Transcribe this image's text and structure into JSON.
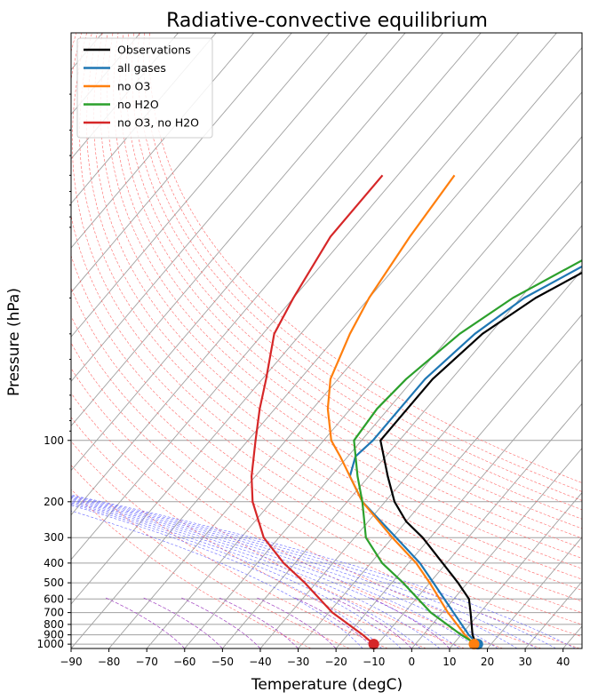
{
  "chart_data": {
    "type": "line",
    "title": "Radiative-convective equilibrium",
    "xlabel": "Temperature (degC)",
    "ylabel": "Pressure (hPa)",
    "xlim": [
      -90,
      45
    ],
    "ylim": [
      1050,
      1
    ],
    "yscale": "log",
    "skew": "skew-T log-p",
    "grid": true,
    "legend_position": "top-left",
    "x_ticks": [
      "−90",
      "−80",
      "−70",
      "−60",
      "−50",
      "−40",
      "−30",
      "−20",
      "−10",
      "0",
      "10",
      "20",
      "30",
      "40"
    ],
    "y_ticks": [
      "100",
      "200",
      "300",
      "400",
      "500",
      "600",
      "700",
      "800",
      "900",
      "1000"
    ],
    "series": [
      {
        "name": "Observations",
        "color": "#000000",
        "points": [
          [
            1000,
            16
          ],
          [
            900,
            13
          ],
          [
            700,
            7.5
          ],
          [
            600,
            4
          ],
          [
            500,
            -2.5
          ],
          [
            400,
            -11
          ],
          [
            300,
            -22
          ],
          [
            250,
            -30
          ],
          [
            200,
            -37.5
          ],
          [
            150,
            -45
          ],
          [
            100,
            -55
          ],
          [
            70,
            -55
          ],
          [
            50,
            -55
          ],
          [
            30,
            -52
          ],
          [
            20,
            -46
          ],
          [
            10,
            -30
          ],
          [
            5,
            -14
          ],
          [
            2,
            2
          ]
        ]
      },
      {
        "name": "all gases",
        "color": "#1f77b4",
        "points": [
          [
            1000,
            16.5
          ],
          [
            900,
            12
          ],
          [
            700,
            3
          ],
          [
            500,
            -9
          ],
          [
            400,
            -17
          ],
          [
            300,
            -29
          ],
          [
            200,
            -46
          ],
          [
            150,
            -55
          ],
          [
            120,
            -58
          ],
          [
            100,
            -57
          ],
          [
            70,
            -57
          ],
          [
            50,
            -57
          ],
          [
            30,
            -54
          ],
          [
            20,
            -49
          ],
          [
            10,
            -33
          ],
          [
            5,
            -17
          ],
          [
            1,
            18
          ]
        ]
      },
      {
        "name": "no O3",
        "color": "#ff7f0e",
        "points": [
          [
            1000,
            15.5
          ],
          [
            900,
            11
          ],
          [
            700,
            1.5
          ],
          [
            500,
            -10
          ],
          [
            400,
            -18
          ],
          [
            300,
            -30
          ],
          [
            200,
            -46
          ],
          [
            150,
            -55
          ],
          [
            120,
            -62
          ],
          [
            100,
            -68
          ],
          [
            70,
            -76
          ],
          [
            50,
            -82
          ],
          [
            30,
            -87
          ],
          [
            20,
            -90
          ],
          [
            10,
            -93
          ],
          [
            5,
            -95
          ]
        ]
      },
      {
        "name": "no H2O",
        "color": "#2ca02c",
        "points": [
          [
            1000,
            16
          ],
          [
            900,
            10
          ],
          [
            700,
            -3
          ],
          [
            500,
            -17
          ],
          [
            400,
            -27
          ],
          [
            300,
            -37
          ],
          [
            200,
            -46
          ],
          [
            150,
            -53
          ],
          [
            100,
            -62
          ],
          [
            70,
            -63
          ],
          [
            50,
            -62
          ],
          [
            30,
            -58
          ],
          [
            20,
            -52
          ],
          [
            10,
            -36
          ],
          [
            5,
            -22
          ],
          [
            1,
            13
          ]
        ]
      },
      {
        "name": "no O3, no H2O",
        "color": "#d62728",
        "points": [
          [
            1000,
            -11
          ],
          [
            900,
            -16
          ],
          [
            700,
            -29
          ],
          [
            500,
            -43
          ],
          [
            400,
            -53
          ],
          [
            300,
            -64
          ],
          [
            200,
            -75
          ],
          [
            150,
            -81
          ],
          [
            100,
            -88
          ],
          [
            70,
            -94
          ],
          [
            50,
            -99
          ],
          [
            30,
            -107
          ],
          [
            20,
            -110
          ],
          [
            10,
            -114
          ],
          [
            5,
            -114
          ]
        ]
      }
    ],
    "surface_markers": [
      {
        "name": "all gases",
        "color": "#1f77b4",
        "temperature": 16.5,
        "pressure": 1000
      },
      {
        "name": "no O3",
        "color": "#ff7f0e",
        "temperature": 15.5,
        "pressure": 1000
      },
      {
        "name": "no O3, no H2O",
        "color": "#d62728",
        "temperature": -11,
        "pressure": 1000
      }
    ],
    "background_lines": {
      "isotherm_color": "#a0a0a0",
      "isobar_color": "#a0a0a0",
      "dry_adiabat_color": "#ff6666",
      "moist_adiabat_color": "#6666ff",
      "mixing_ratio_color": "#a040c0"
    }
  }
}
